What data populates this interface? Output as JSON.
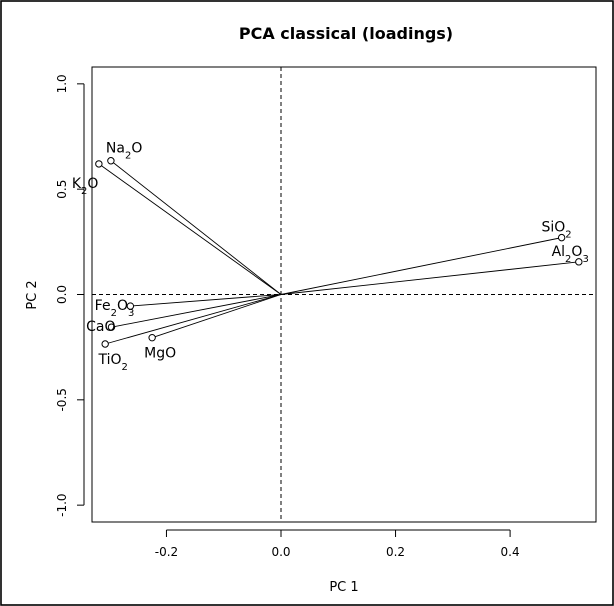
{
  "chart_data": {
    "type": "scatter",
    "title": "PCA classical (loadings)",
    "xlabel": "PC 1",
    "ylabel": "PC 2",
    "xlim": [
      -0.33,
      0.55
    ],
    "ylim": [
      -1.08,
      1.08
    ],
    "xticks": [
      -0.2,
      0.0,
      0.2,
      0.4
    ],
    "yticks": [
      -1.0,
      -0.5,
      0.0,
      0.5,
      1.0
    ],
    "xtick_labels": [
      "-0.2",
      "0.0",
      "0.2",
      "0.4"
    ],
    "ytick_labels": [
      "-1.0",
      "-0.5",
      "0.0",
      "0.5",
      "1.0"
    ],
    "reference_lines": {
      "x": 0,
      "y": 0,
      "style": "dashed"
    },
    "grid": false,
    "points": [
      {
        "label": "Na2O",
        "label_parts": [
          {
            "t": "Na"
          },
          {
            "t": "2",
            "sub": true
          },
          {
            "t": "O"
          }
        ],
        "x": -0.297,
        "y": 0.635,
        "label_pos": "above-right"
      },
      {
        "label": "K2O",
        "label_parts": [
          {
            "t": "K"
          },
          {
            "t": "2",
            "sub": true
          },
          {
            "t": "O"
          }
        ],
        "x": -0.318,
        "y": 0.62,
        "label_pos": "below-right"
      },
      {
        "label": "SiO2",
        "label_parts": [
          {
            "t": "SiO"
          },
          {
            "t": "2",
            "sub": true
          }
        ],
        "x": 0.49,
        "y": 0.27,
        "label_pos": "above-left"
      },
      {
        "label": "Al2O3",
        "label_parts": [
          {
            "t": "Al"
          },
          {
            "t": "2",
            "sub": true
          },
          {
            "t": "O"
          },
          {
            "t": "3",
            "sub": true
          }
        ],
        "x": 0.52,
        "y": 0.155,
        "label_pos": "above-left"
      },
      {
        "label": "Fe2O3",
        "label_parts": [
          {
            "t": "Fe"
          },
          {
            "t": "2",
            "sub": true
          },
          {
            "t": "O"
          },
          {
            "t": "3",
            "sub": true
          }
        ],
        "x": -0.263,
        "y": -0.055,
        "label_pos": "left"
      },
      {
        "label": "CaO",
        "label_parts": [
          {
            "t": "CaO"
          }
        ],
        "x": -0.296,
        "y": -0.155,
        "label_pos": "left"
      },
      {
        "label": "TiO2",
        "label_parts": [
          {
            "t": "TiO"
          },
          {
            "t": "2",
            "sub": true
          }
        ],
        "x": -0.307,
        "y": -0.235,
        "label_pos": "below"
      },
      {
        "label": "MgO",
        "label_parts": [
          {
            "t": "MgO"
          }
        ],
        "x": -0.225,
        "y": -0.205,
        "label_pos": "below"
      }
    ]
  }
}
